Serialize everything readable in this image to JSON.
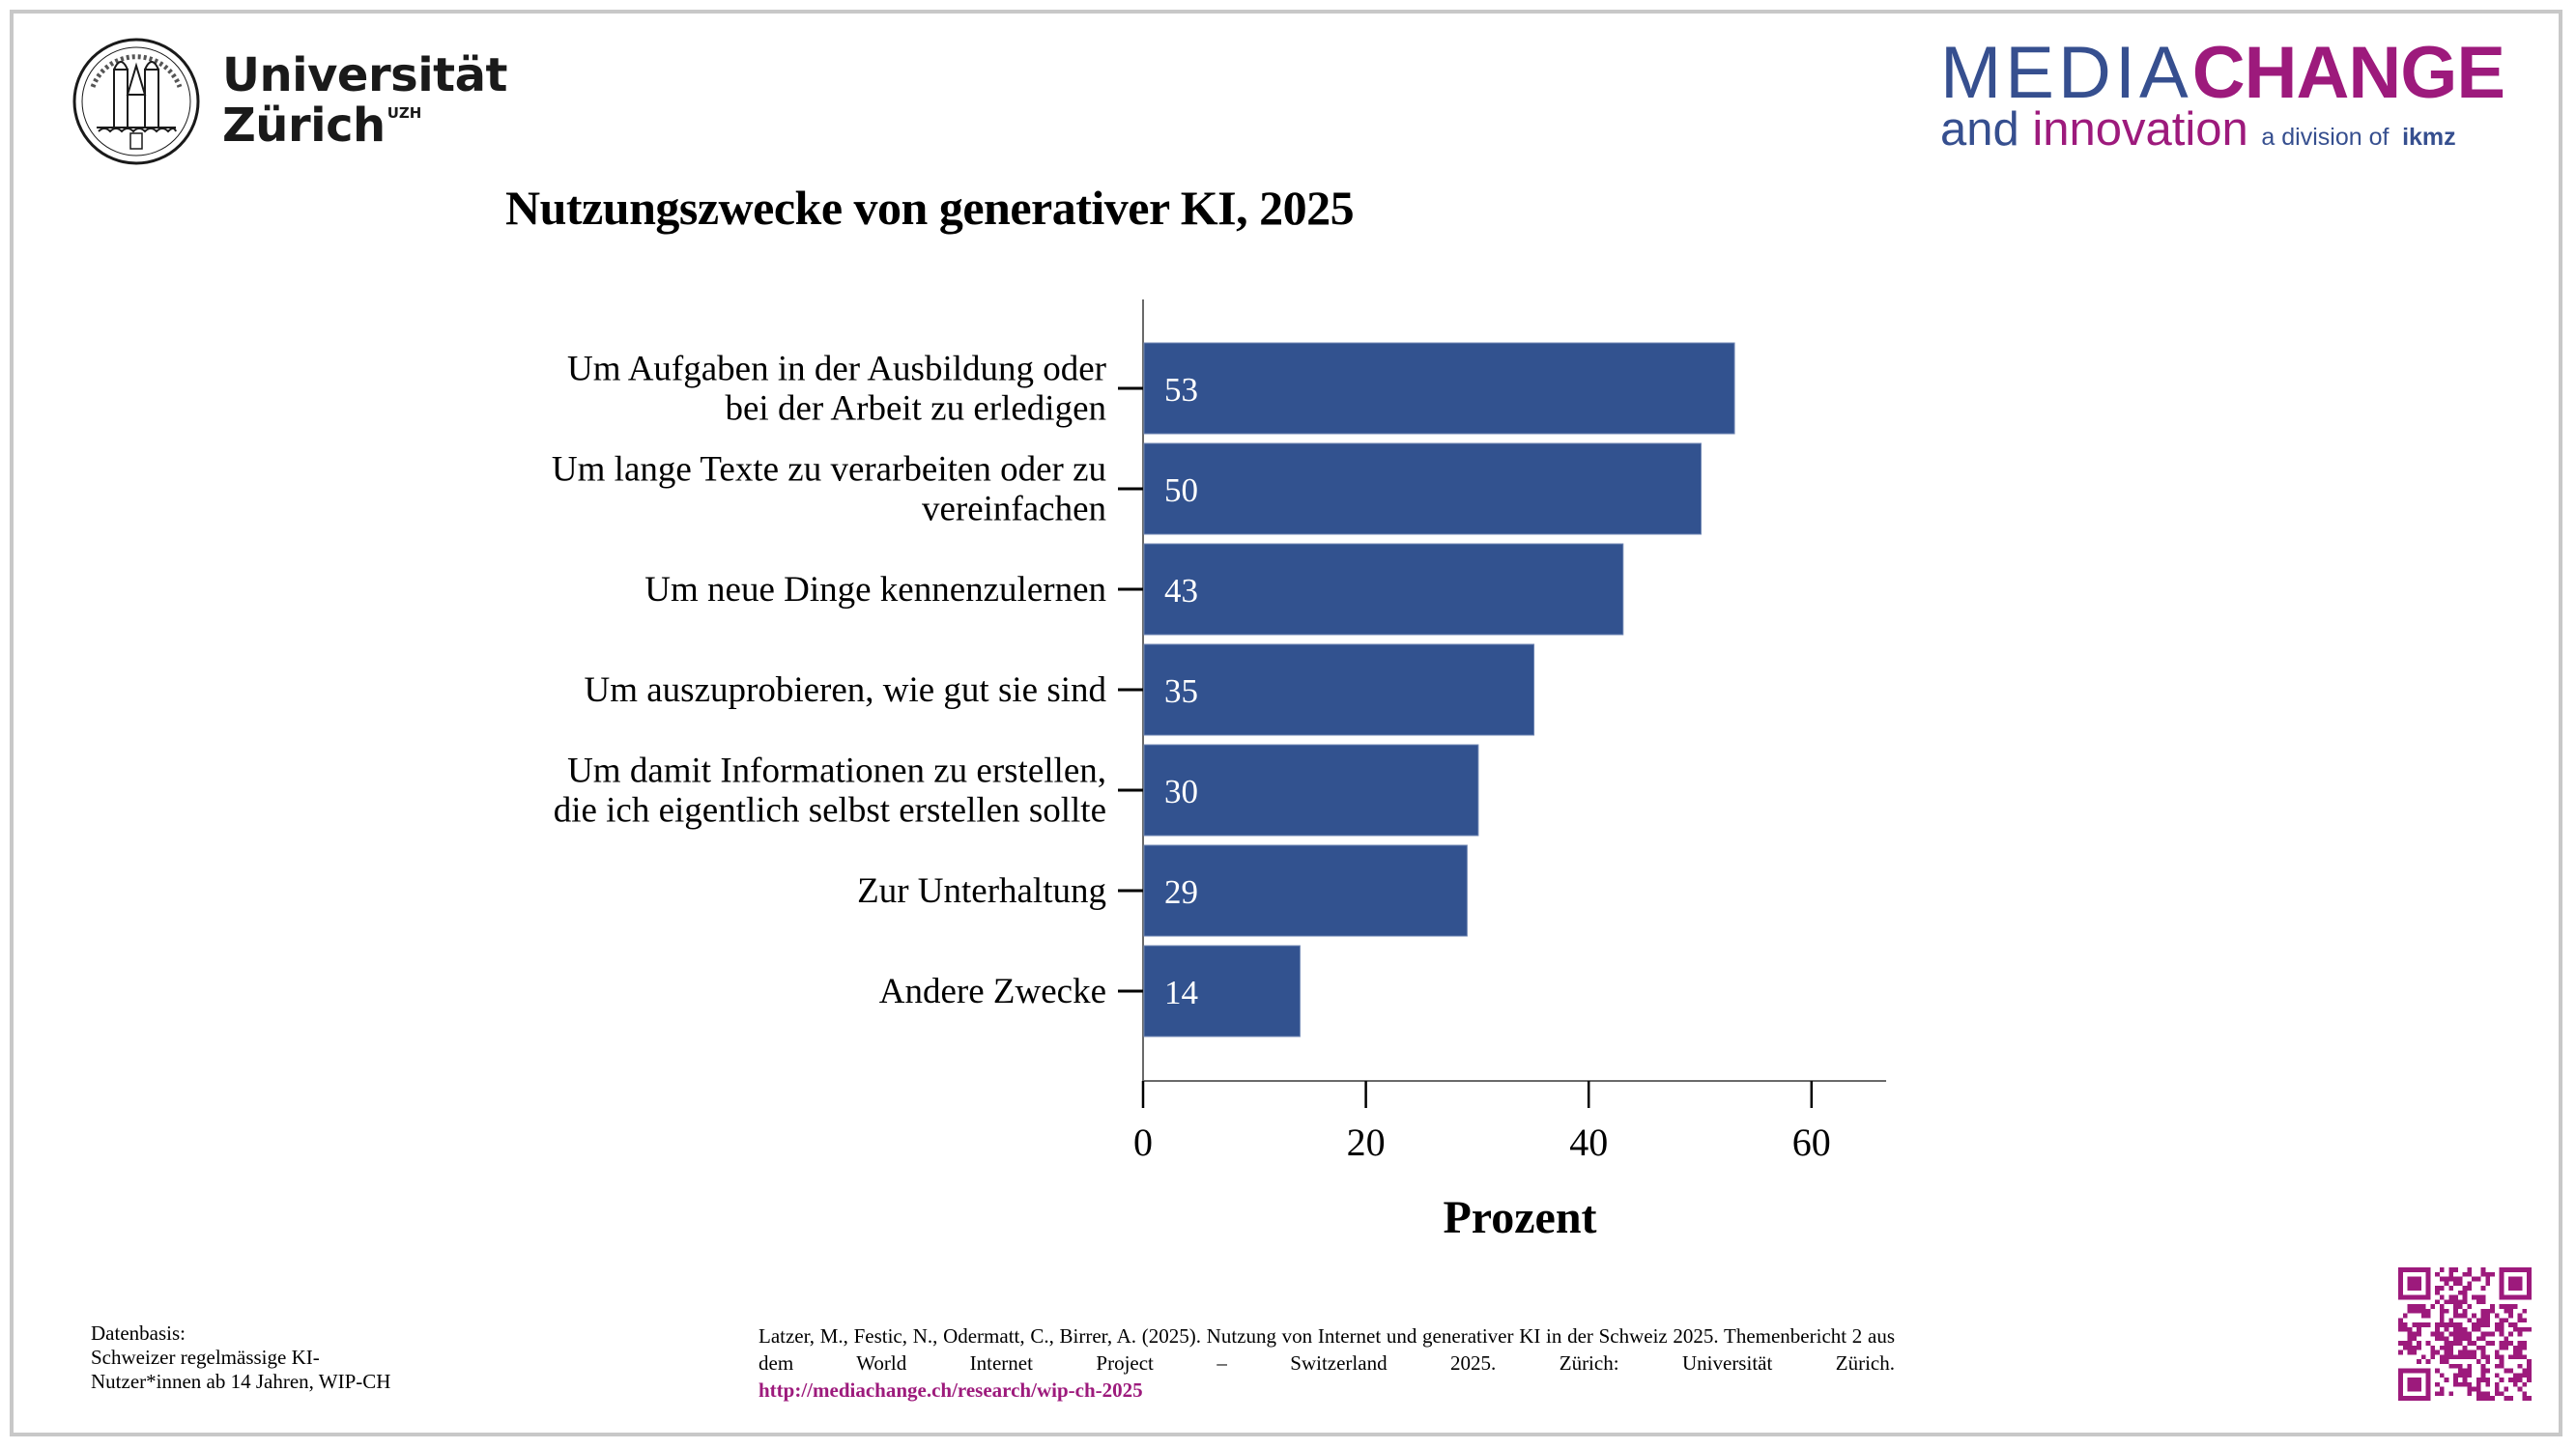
{
  "header": {
    "uzh_logo": {
      "line1": "Universität",
      "line2": "Zürich",
      "superscript": "UZH",
      "seal_icon": "university-seal-icon"
    },
    "mediachange_logo": {
      "media": "MEDIA",
      "change": "CHANGE",
      "and": "and",
      "innovation": "innovation",
      "division": "a division of",
      "ikmz": "ikmz"
    }
  },
  "colors": {
    "bar": "#32528f",
    "brand_blue": "#364f8f",
    "brand_magenta": "#9d1a7c",
    "frame": "#c8c8c8"
  },
  "chart_data": {
    "type": "bar",
    "orientation": "horizontal",
    "title": "Nutzungszwecke von generativer KI, 2025",
    "xlabel": "Prozent",
    "ylabel": "",
    "xlim": [
      0,
      66.7
    ],
    "xticks": [
      0,
      20,
      40,
      60
    ],
    "grid": false,
    "categories": [
      [
        "Um Aufgaben in der Ausbildung oder",
        "bei der Arbeit zu erledigen"
      ],
      [
        "Um lange Texte zu verarbeiten oder zu",
        "vereinfachen"
      ],
      [
        "Um neue Dinge kennenzulernen"
      ],
      [
        "Um auszuprobieren, wie gut sie sind"
      ],
      [
        "Um damit Informationen zu erstellen,",
        "die ich eigentlich selbst erstellen sollte"
      ],
      [
        "Zur Unterhaltung"
      ],
      [
        "Andere Zwecke"
      ]
    ],
    "values": [
      53,
      50,
      43,
      35,
      30,
      29,
      14
    ],
    "value_labels": [
      "53",
      "50",
      "43",
      "35",
      "30",
      "29",
      "14"
    ]
  },
  "footer": {
    "datenbasis": [
      "Datenbasis:",
      "Schweizer regelmässige KI-",
      "Nutzer*innen ab 14 Jahren, WIP-CH"
    ],
    "citation": "Latzer, M., Festic, N., Odermatt, C., Birrer, A. (2025). Nutzung von Internet und generativer KI in der Schweiz 2025. Themenbericht 2 aus dem World Internet Project – Switzerland 2025. Zürich: Universität Zürich.",
    "link": "http://mediachange.ch/research/wip-ch-2025",
    "qr_icon": "qr-code-icon"
  }
}
